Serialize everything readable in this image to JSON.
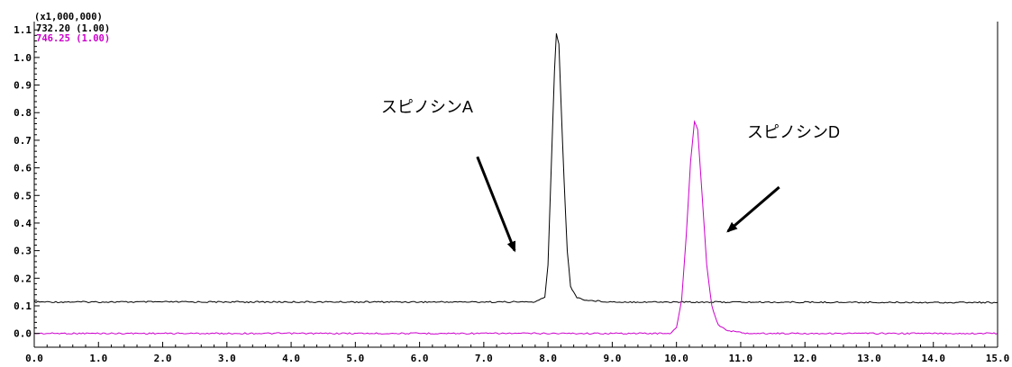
{
  "chart_data": {
    "type": "line",
    "y_scale_label": "(x1,000,000)",
    "xlim": [
      0.0,
      15.0
    ],
    "ylim": [
      -0.05,
      1.13
    ],
    "x_ticks": [
      0,
      1,
      2,
      3,
      4,
      5,
      6,
      7,
      8,
      9,
      10,
      11,
      12,
      13,
      14,
      15
    ],
    "x_tick_labels": [
      "0.0",
      "1.0",
      "2.0",
      "3.0",
      "4.0",
      "5.0",
      "6.0",
      "7.0",
      "8.0",
      "9.0",
      "10.0",
      "11.0",
      "12.0",
      "13.0",
      "14.0",
      "15.0"
    ],
    "y_ticks": [
      0.0,
      0.1,
      0.2,
      0.3,
      0.4,
      0.5,
      0.6,
      0.7,
      0.8,
      0.9,
      1.0,
      1.1
    ],
    "y_tick_labels": [
      "0.0",
      "0.1",
      "0.2",
      "0.3",
      "0.4",
      "0.5",
      "0.6",
      "0.7",
      "0.8",
      "0.9",
      "1.0",
      "1.1"
    ],
    "grid": false,
    "legend_position": "top-left",
    "series": [
      {
        "name": "732.20 (1.00)",
        "color": "#000000",
        "points": [
          [
            0.0,
            0.114
          ],
          [
            7.8,
            0.114
          ],
          [
            7.95,
            0.13
          ],
          [
            8.0,
            0.25
          ],
          [
            8.05,
            0.6
          ],
          [
            8.1,
            0.95
          ],
          [
            8.13,
            1.087
          ],
          [
            8.17,
            1.05
          ],
          [
            8.2,
            0.85
          ],
          [
            8.25,
            0.55
          ],
          [
            8.3,
            0.3
          ],
          [
            8.35,
            0.17
          ],
          [
            8.45,
            0.13
          ],
          [
            8.6,
            0.12
          ],
          [
            9.0,
            0.114
          ],
          [
            15.0,
            0.112
          ]
        ]
      },
      {
        "name": "746.25 (1.00)",
        "color": "#cc00cc",
        "points": [
          [
            0.0,
            0.0
          ],
          [
            9.9,
            0.0
          ],
          [
            10.0,
            0.02
          ],
          [
            10.08,
            0.12
          ],
          [
            10.15,
            0.35
          ],
          [
            10.22,
            0.62
          ],
          [
            10.28,
            0.77
          ],
          [
            10.33,
            0.74
          ],
          [
            10.4,
            0.5
          ],
          [
            10.47,
            0.25
          ],
          [
            10.55,
            0.1
          ],
          [
            10.65,
            0.03
          ],
          [
            10.8,
            0.01
          ],
          [
            11.1,
            0.0
          ],
          [
            15.0,
            0.0
          ]
        ]
      }
    ],
    "annotations": [
      {
        "text": "スピノシンA",
        "label_at": [
          5.4,
          0.8
        ],
        "arrow_from": [
          6.9,
          0.64
        ],
        "arrow_to": [
          7.48,
          0.3
        ]
      },
      {
        "text": "スピノシンD",
        "label_at": [
          11.1,
          0.71
        ],
        "arrow_from": [
          11.6,
          0.53
        ],
        "arrow_to": [
          10.8,
          0.37
        ]
      }
    ]
  }
}
